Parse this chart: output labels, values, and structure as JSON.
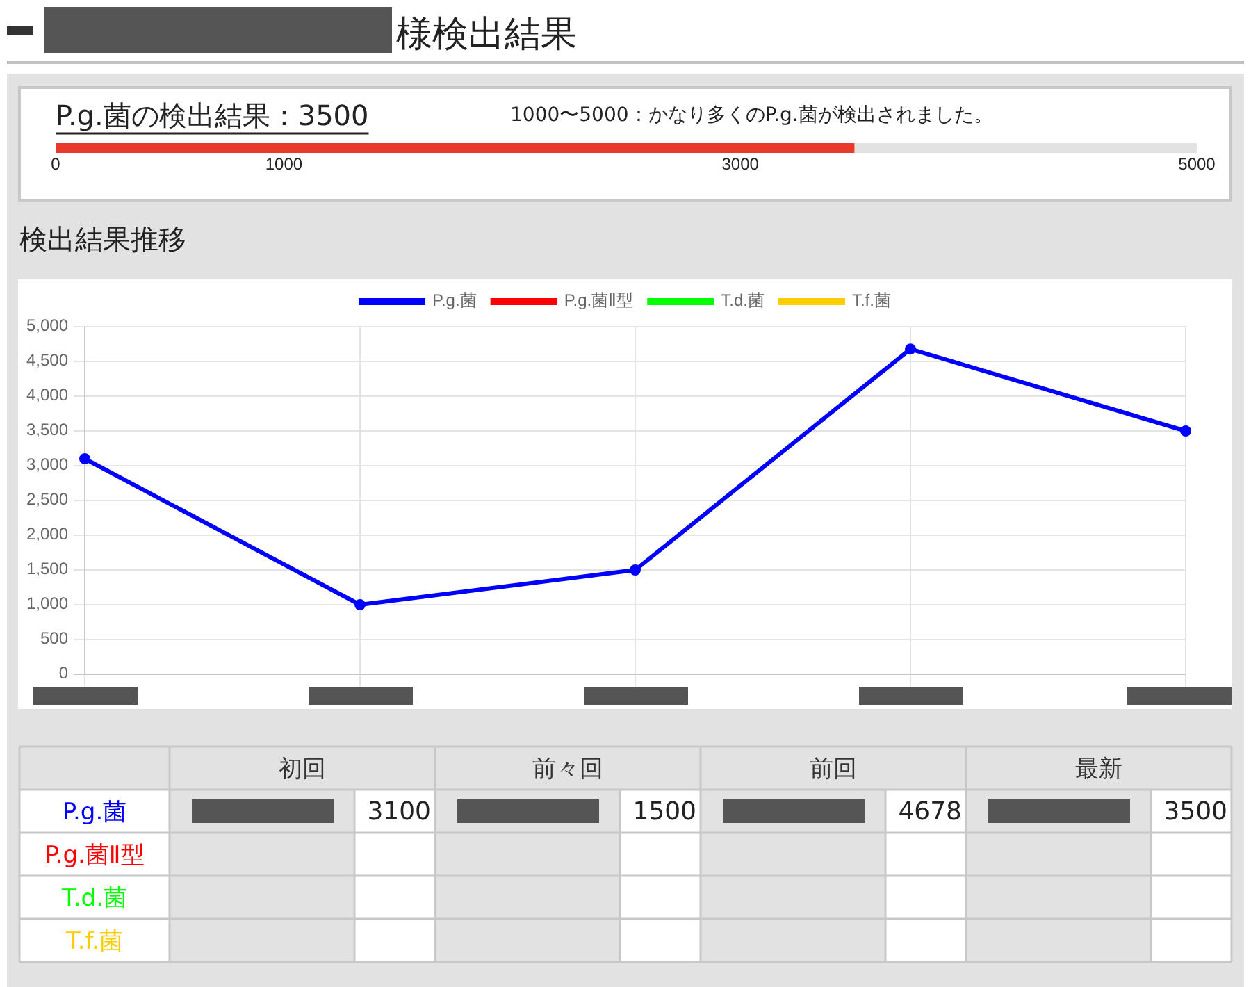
{
  "chart_data": [
    {
      "type": "bar",
      "title": "様検出結果",
      "subtitle": "P.g.菌の検出結果：3500",
      "annotations": [
        "1000〜5000：かなり多くのP.g.菌が検出されました。"
      ],
      "orientation": "horizontal",
      "categories": [
        null
      ],
      "values": [
        3500
      ],
      "color": "#e8392a",
      "xlim": [
        0,
        5000
      ],
      "xticks": [
        0,
        1000,
        3000,
        5000
      ]
    },
    {
      "type": "line",
      "title": "検出結果推移",
      "categories": [
        null,
        null,
        null,
        null,
        null
      ],
      "series": [
        {
          "name": "P.g.菌",
          "color": "#0000ff",
          "values": [
            3100,
            1000,
            1500,
            4678,
            3500
          ]
        },
        {
          "name": "P.g.菌Ⅱ型",
          "color": "#ff0000",
          "values": [
            null,
            null,
            null,
            null,
            null
          ]
        },
        {
          "name": "T.d.菌",
          "color": "#00ff00",
          "values": [
            null,
            null,
            null,
            null,
            null
          ]
        },
        {
          "name": "T.f.菌",
          "color": "#ffcc00",
          "values": [
            null,
            null,
            null,
            null,
            null
          ]
        }
      ],
      "ylim": [
        0,
        5000
      ],
      "yticks": [
        0,
        500,
        {
          "value": 1000,
          "label": "1,000"
        },
        {
          "value": 1500,
          "label": "1,500"
        },
        {
          "value": 2000,
          "label": "2,000"
        },
        {
          "value": 2500,
          "label": "2,500"
        },
        {
          "value": 3000,
          "label": "3,000"
        },
        {
          "value": 3500,
          "label": "3,500"
        },
        {
          "value": 4000,
          "label": "4,000"
        },
        {
          "value": 4500,
          "label": "4,500"
        },
        {
          "value": 5000,
          "label": "5,000"
        }
      ],
      "grid": true,
      "legend": "top",
      "marker": "circle",
      "line_style": "solid"
    },
    {
      "type": "other",
      "categories": [
        "初回",
        "前々回",
        "前回",
        "最新"
      ],
      "series": [
        {
          "name": "P.g.菌",
          "values": [
            3100,
            1500,
            4678,
            3500
          ]
        },
        {
          "name": "P.g.菌Ⅱ型",
          "values": [
            null,
            null,
            null,
            null
          ]
        },
        {
          "name": "T.d.菌",
          "values": [
            null,
            null,
            null,
            null
          ]
        },
        {
          "name": "T.f.菌",
          "values": [
            null,
            null,
            null,
            null
          ]
        }
      ],
      "data_labels": true
    }
  ]
}
